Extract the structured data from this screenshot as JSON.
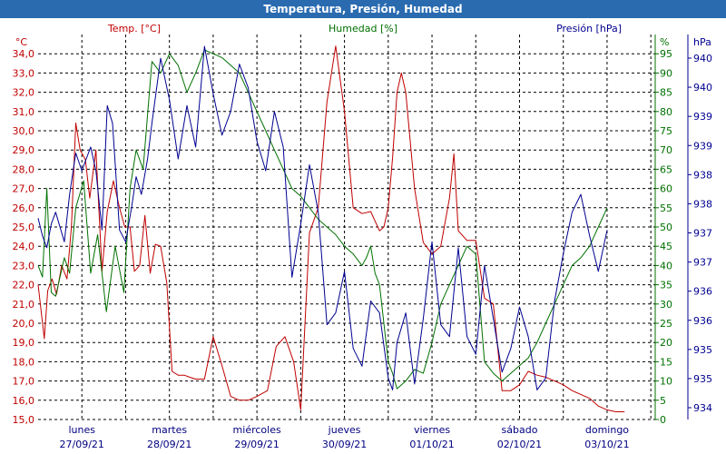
{
  "window": {
    "title": "Temperatura, Presión, Humedad"
  },
  "colors": {
    "titlebar": "#2a6bb0",
    "temperature": "#c00000",
    "humidity": "#007000",
    "pressure": "#000090",
    "grid": "#000000",
    "axis_labels": "#000080"
  },
  "chart_data": {
    "type": "line",
    "title": "Temperatura, Presión, Humedad",
    "grid": true,
    "x_axis": {
      "range": [
        0,
        7.05
      ],
      "unit": "days since 27/09/21 00:00",
      "tick_labels": [
        {
          "day": "lunes",
          "date": "27/09/21"
        },
        {
          "day": "martes",
          "date": "28/09/21"
        },
        {
          "day": "miércoles",
          "date": "29/09/21"
        },
        {
          "day": "jueves",
          "date": "30/09/21"
        },
        {
          "day": "viernes",
          "date": "01/10/21"
        },
        {
          "day": "sábado",
          "date": "02/10/21"
        },
        {
          "day": "domingo",
          "date": "03/10/21"
        }
      ]
    },
    "axes": {
      "temperature": {
        "unit": "°C",
        "range": [
          15.0,
          35.0
        ],
        "ticks": [
          "15,0",
          "16,0",
          "17,0",
          "18,0",
          "19,0",
          "20,0",
          "21,0",
          "22,0",
          "23,0",
          "24,0",
          "25,0",
          "26,0",
          "27,0",
          "28,0",
          "29,0",
          "30,0",
          "31,0",
          "32,0",
          "33,0",
          "34,0"
        ]
      },
      "humidity": {
        "unit": "%",
        "range": [
          0,
          100
        ],
        "ticks": [
          "0",
          "5",
          "10",
          "15",
          "20",
          "25",
          "30",
          "35",
          "40",
          "45",
          "50",
          "55",
          "60",
          "65",
          "70",
          "75",
          "80",
          "85",
          "90",
          "95"
        ]
      },
      "pressure": {
        "unit": "hPa",
        "range": [
          934,
          940.5
        ],
        "ticks": [
          "934",
          "935",
          "935",
          "936",
          "936",
          "937",
          "937",
          "938",
          "938",
          "939",
          "939",
          "940",
          "940"
        ]
      }
    },
    "series": [
      {
        "key": "temperature",
        "name": "Temp. [°C]",
        "axis": "temperature",
        "x": [
          0.0,
          0.07,
          0.11,
          0.16,
          0.21,
          0.27,
          0.33,
          0.38,
          0.43,
          0.48,
          0.54,
          0.59,
          0.66,
          0.73,
          0.79,
          0.86,
          0.93,
          0.99,
          1.05,
          1.1,
          1.16,
          1.22,
          1.28,
          1.34,
          1.4,
          1.47,
          1.53,
          1.6,
          1.67,
          1.73,
          1.8,
          1.9,
          2.0,
          2.1,
          2.2,
          2.3,
          2.4,
          2.5,
          2.62,
          2.72,
          2.82,
          2.92,
          3.0,
          3.1,
          3.2,
          3.3,
          3.4,
          3.5,
          3.6,
          3.7,
          3.8,
          3.9,
          3.95,
          4.0,
          4.05,
          4.1,
          4.15,
          4.2,
          4.3,
          4.4,
          4.5,
          4.6,
          4.7,
          4.75,
          4.8,
          4.9,
          5.0,
          5.1,
          5.2,
          5.3,
          5.4,
          5.5,
          5.6,
          5.7,
          5.8,
          5.9,
          6.0,
          6.1,
          6.2,
          6.3,
          6.35,
          6.4,
          6.5,
          6.6,
          6.7
        ],
        "y": [
          22,
          19.2,
          21.7,
          22.3,
          21.5,
          23,
          22.3,
          25,
          30.4,
          29,
          28.5,
          26.5,
          29,
          22.7,
          25.8,
          27.4,
          26,
          25,
          25,
          22.7,
          23,
          25.6,
          22.6,
          24.1,
          24,
          22.1,
          17.5,
          17.3,
          17.3,
          17.2,
          17.1,
          17.1,
          19.3,
          17.8,
          16.2,
          16,
          16,
          16.2,
          16.5,
          18.8,
          19.3,
          18,
          15.5,
          24.7,
          26,
          31.5,
          34.4,
          31,
          26,
          25.7,
          25.8,
          24.8,
          25,
          26,
          28.6,
          32,
          33,
          32,
          27,
          24.2,
          23.6,
          24,
          26.5,
          28.8,
          24.8,
          24.3,
          24.3,
          21.3,
          21,
          16.5,
          16.5,
          16.8,
          17.5,
          17.3,
          17.2,
          17,
          16.8,
          16.5,
          16.3,
          16.1,
          15.9,
          15.7,
          15.5,
          15.4,
          15.4
        ]
      },
      {
        "key": "humidity",
        "name": "Humedad [%]",
        "axis": "humidity",
        "x": [
          0.0,
          0.05,
          0.1,
          0.15,
          0.2,
          0.3,
          0.36,
          0.43,
          0.52,
          0.6,
          0.68,
          0.78,
          0.88,
          0.98,
          1.05,
          1.12,
          1.2,
          1.3,
          1.4,
          1.5,
          1.6,
          1.7,
          1.8,
          1.9,
          2.0,
          2.1,
          2.2,
          2.3,
          2.4,
          2.5,
          2.6,
          2.7,
          2.8,
          2.9,
          3.0,
          3.1,
          3.2,
          3.3,
          3.4,
          3.5,
          3.6,
          3.7,
          3.75,
          3.8,
          3.85,
          3.9,
          3.95,
          4.0,
          4.05,
          4.1,
          4.2,
          4.3,
          4.4,
          4.5,
          4.6,
          4.7,
          4.8,
          4.9,
          5.0,
          5.1,
          5.2,
          5.3,
          5.4,
          5.5,
          5.6,
          5.7,
          5.8,
          5.9,
          6.0,
          6.1,
          6.2,
          6.3,
          6.4,
          6.5
        ],
        "y": [
          40,
          37,
          60,
          33,
          32,
          42,
          38,
          55,
          62,
          38,
          48,
          28,
          45,
          33,
          60,
          70,
          65,
          93,
          90,
          95,
          92,
          85,
          90,
          96,
          95,
          94,
          92,
          90,
          85,
          80,
          75,
          70,
          65,
          60,
          58,
          55,
          52,
          50,
          48,
          45,
          43,
          40,
          42,
          45,
          38,
          35,
          25,
          15,
          12,
          8,
          10,
          13,
          12,
          20,
          30,
          35,
          40,
          45,
          43,
          15,
          12,
          10,
          12,
          14,
          16,
          20,
          25,
          30,
          35,
          40,
          42,
          45,
          50,
          55
        ]
      },
      {
        "key": "pressure",
        "name": "Presión [hPa]",
        "axis": "pressure",
        "x": [
          0.0,
          0.05,
          0.1,
          0.15,
          0.2,
          0.3,
          0.36,
          0.43,
          0.5,
          0.6,
          0.66,
          0.73,
          0.79,
          0.85,
          0.93,
          1.0,
          1.07,
          1.12,
          1.18,
          1.25,
          1.3,
          1.4,
          1.5,
          1.6,
          1.7,
          1.8,
          1.9,
          2.0,
          2.1,
          2.2,
          2.3,
          2.4,
          2.5,
          2.6,
          2.7,
          2.8,
          2.9,
          3.0,
          3.1,
          3.2,
          3.3,
          3.4,
          3.5,
          3.6,
          3.7,
          3.8,
          3.9,
          4.0,
          4.05,
          4.1,
          4.2,
          4.3,
          4.4,
          4.5,
          4.6,
          4.7,
          4.8,
          4.9,
          5.0,
          5.1,
          5.2,
          5.3,
          5.4,
          5.5,
          5.6,
          5.7,
          5.8,
          5.9,
          6.0,
          6.1,
          6.2,
          6.3,
          6.4,
          6.5
        ],
        "y": [
          937.4,
          937.1,
          936.9,
          937.3,
          937.5,
          937.0,
          937.8,
          938.5,
          938.2,
          938.6,
          938.2,
          937.2,
          939.3,
          939.0,
          937.2,
          937.0,
          937.6,
          938.1,
          937.8,
          938.4,
          939.0,
          940.1,
          939.4,
          938.4,
          939.3,
          938.6,
          940.3,
          939.5,
          938.8,
          939.2,
          940.0,
          939.6,
          938.7,
          938.2,
          939.2,
          938.6,
          936.4,
          937.3,
          938.3,
          937.5,
          935.6,
          935.8,
          936.5,
          935.2,
          934.9,
          936.0,
          935.8,
          934.7,
          934.5,
          935.3,
          935.8,
          934.6,
          935.7,
          937.0,
          935.6,
          935.4,
          936.9,
          935.4,
          935.1,
          936.6,
          935.7,
          934.8,
          935.2,
          935.9,
          935.4,
          934.5,
          934.7,
          936.0,
          936.8,
          937.5,
          937.8,
          937.1,
          936.5,
          937.2
        ]
      }
    ]
  }
}
